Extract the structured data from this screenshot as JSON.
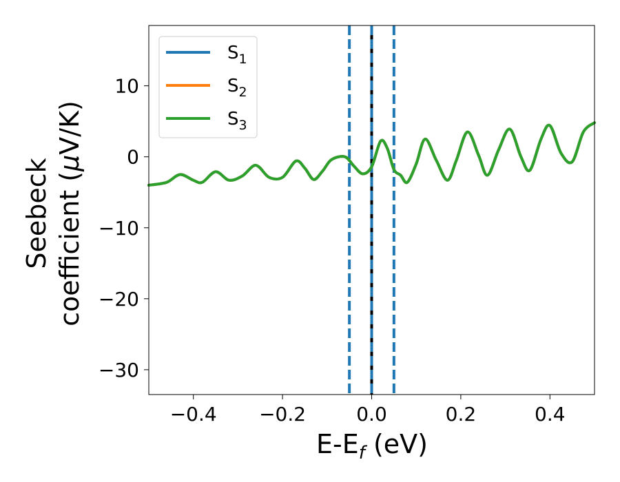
{
  "chart_data": {
    "type": "line",
    "xlabel": "E-E",
    "xlabel_sub": "f",
    "xlabel_unit": " (eV)",
    "ylabel_line1": "Seebeck",
    "ylabel_line2_pre": "coefficient  (",
    "ylabel_mu": "μ",
    "ylabel_line2_post": "V/K)",
    "xlim": [
      -0.5,
      0.5
    ],
    "ylim": [
      -33.5,
      18.5
    ],
    "x_ticks": [
      -0.4,
      -0.2,
      0.0,
      0.2,
      0.4
    ],
    "x_tick_labels": [
      "−0.4",
      "−0.2",
      "0.0",
      "0.2",
      "0.4"
    ],
    "y_ticks": [
      -30,
      -20,
      -10,
      0,
      10
    ],
    "y_tick_labels": [
      "−30",
      "−20",
      "−10",
      "0",
      "10"
    ],
    "grid": false,
    "legend_position": "top-left",
    "vlines": [
      {
        "x": -0.05,
        "style": "dashed",
        "color": "#1f77b4"
      },
      {
        "x": 0.0,
        "style": "solid",
        "color": "#000000"
      },
      {
        "x": 0.0,
        "style": "dashed",
        "color": "#1f77b4"
      },
      {
        "x": 0.05,
        "style": "dashed",
        "color": "#1f77b4"
      }
    ],
    "series": [
      {
        "name": "S",
        "sub": "1",
        "color": "#1f77b4",
        "x": [
          -0.5,
          -0.46,
          -0.43,
          -0.4,
          -0.38,
          -0.35,
          -0.32,
          -0.29,
          -0.26,
          -0.23,
          -0.2,
          -0.17,
          -0.15,
          -0.13,
          -0.11,
          -0.09,
          -0.06,
          -0.04,
          -0.02,
          0.0,
          0.02,
          0.035,
          0.05,
          0.065,
          0.08,
          0.1,
          0.12,
          0.145,
          0.17,
          0.19,
          0.215,
          0.24,
          0.26,
          0.285,
          0.31,
          0.335,
          0.355,
          0.38,
          0.4,
          0.425,
          0.45,
          0.475,
          0.5
        ],
        "y": [
          -4.0,
          -3.6,
          -2.5,
          -3.3,
          -3.6,
          -2.1,
          -3.3,
          -2.7,
          -1.2,
          -2.9,
          -2.9,
          -0.6,
          -1.6,
          -3.2,
          -2.0,
          -0.4,
          0.0,
          -1.3,
          -2.4,
          -1.4,
          2.2,
          1.2,
          -1.8,
          -2.6,
          -3.6,
          -1.0,
          2.5,
          -0.5,
          -3.3,
          -0.5,
          3.5,
          0.2,
          -2.6,
          1.0,
          3.9,
          0.0,
          -1.9,
          2.5,
          4.4,
          0.5,
          -0.7,
          3.5,
          4.8
        ]
      },
      {
        "name": "S",
        "sub": "2",
        "color": "#ff7f0e",
        "x": [
          -0.5,
          -0.46,
          -0.43,
          -0.4,
          -0.38,
          -0.35,
          -0.32,
          -0.29,
          -0.26,
          -0.23,
          -0.2,
          -0.17,
          -0.15,
          -0.13,
          -0.11,
          -0.09,
          -0.06,
          -0.04,
          -0.02,
          0.0,
          0.02,
          0.035,
          0.05,
          0.065,
          0.08,
          0.1,
          0.12,
          0.145,
          0.17,
          0.19,
          0.215,
          0.24,
          0.26,
          0.285,
          0.31,
          0.335,
          0.355,
          0.38,
          0.4,
          0.425,
          0.45,
          0.475,
          0.5
        ],
        "y": [
          -4.0,
          -3.6,
          -2.5,
          -3.3,
          -3.6,
          -2.1,
          -3.3,
          -2.7,
          -1.2,
          -2.9,
          -2.9,
          -0.6,
          -1.6,
          -3.2,
          -2.0,
          -0.4,
          0.0,
          -1.3,
          -2.4,
          -1.4,
          2.2,
          1.2,
          -1.8,
          -2.6,
          -3.6,
          -1.0,
          2.5,
          -0.5,
          -3.3,
          -0.5,
          3.5,
          0.2,
          -2.6,
          1.0,
          3.9,
          0.0,
          -1.9,
          2.5,
          4.4,
          0.5,
          -0.7,
          3.5,
          4.8
        ]
      },
      {
        "name": "S",
        "sub": "3",
        "color": "#2ca02c",
        "x": [
          -0.5,
          -0.46,
          -0.43,
          -0.4,
          -0.38,
          -0.35,
          -0.32,
          -0.29,
          -0.26,
          -0.23,
          -0.2,
          -0.17,
          -0.15,
          -0.13,
          -0.11,
          -0.09,
          -0.06,
          -0.04,
          -0.02,
          0.0,
          0.02,
          0.035,
          0.05,
          0.065,
          0.08,
          0.1,
          0.12,
          0.145,
          0.17,
          0.19,
          0.215,
          0.24,
          0.26,
          0.285,
          0.31,
          0.335,
          0.355,
          0.38,
          0.4,
          0.425,
          0.45,
          0.475,
          0.5
        ],
        "y": [
          -4.0,
          -3.6,
          -2.5,
          -3.3,
          -3.6,
          -2.1,
          -3.3,
          -2.7,
          -1.2,
          -2.9,
          -2.9,
          -0.6,
          -1.6,
          -3.2,
          -2.0,
          -0.4,
          0.0,
          -1.3,
          -2.4,
          -1.4,
          2.2,
          1.2,
          -1.8,
          -2.6,
          -3.6,
          -1.0,
          2.5,
          -0.5,
          -3.3,
          -0.5,
          3.5,
          0.2,
          -2.6,
          1.0,
          3.9,
          0.0,
          -1.9,
          2.5,
          4.4,
          0.5,
          -0.7,
          3.5,
          4.8
        ]
      }
    ]
  }
}
